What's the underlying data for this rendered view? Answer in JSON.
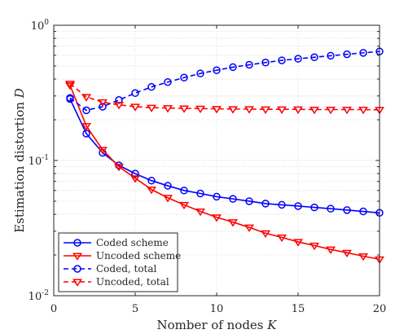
{
  "chart_data": {
    "type": "line",
    "xlabel": "Nomber of nodes ",
    "xlabel_var": "K",
    "ylabel": "Estimation distortion ",
    "ylabel_var": "D",
    "xlim": [
      0,
      20
    ],
    "ylim": [
      0.01,
      1
    ],
    "yscale": "log",
    "x_ticks": [
      0,
      5,
      10,
      15,
      20
    ],
    "y_ticks": [
      {
        "value": 1,
        "base": "10",
        "exp": "0"
      },
      {
        "value": 0.1,
        "base": "10",
        "exp": "-1"
      },
      {
        "value": 0.01,
        "base": "10",
        "exp": "-2"
      }
    ],
    "grid": true,
    "legend_position": "bottom-left",
    "series": [
      {
        "name": "Coded scheme",
        "color": "#0000ff",
        "line": "solid",
        "marker": "circle",
        "x": [
          1,
          2,
          3,
          4,
          5,
          6,
          7,
          8,
          9,
          10,
          11,
          12,
          13,
          14,
          15,
          16,
          17,
          18,
          19,
          20
        ],
        "y": [
          0.285,
          0.158,
          0.114,
          0.092,
          0.08,
          0.071,
          0.065,
          0.06,
          0.057,
          0.054,
          0.052,
          0.05,
          0.048,
          0.047,
          0.046,
          0.045,
          0.044,
          0.043,
          0.042,
          0.041
        ]
      },
      {
        "name": "Uncoded scheme",
        "color": "#ff0000",
        "line": "solid",
        "marker": "triangle-down",
        "x": [
          1,
          2,
          3,
          4,
          5,
          6,
          7,
          8,
          9,
          10,
          11,
          12,
          13,
          14,
          15,
          16,
          17,
          18,
          19,
          20
        ],
        "y": [
          0.36,
          0.18,
          0.12,
          0.09,
          0.074,
          0.061,
          0.053,
          0.047,
          0.042,
          0.038,
          0.035,
          0.032,
          0.029,
          0.027,
          0.025,
          0.0235,
          0.022,
          0.0208,
          0.0196,
          0.0186
        ]
      },
      {
        "name": "Coded, total",
        "color": "#0000ff",
        "line": "dashed",
        "marker": "circle",
        "x": [
          1,
          2,
          3,
          4,
          5,
          6,
          7,
          8,
          9,
          10,
          11,
          12,
          13,
          14,
          15,
          16,
          17,
          18,
          19,
          20
        ],
        "y": [
          0.29,
          0.235,
          0.25,
          0.28,
          0.315,
          0.35,
          0.38,
          0.41,
          0.44,
          0.465,
          0.49,
          0.51,
          0.53,
          0.55,
          0.565,
          0.58,
          0.595,
          0.61,
          0.625,
          0.64
        ]
      },
      {
        "name": "Uncoded, total",
        "color": "#ff0000",
        "line": "dashed",
        "marker": "triangle-down",
        "x": [
          1,
          2,
          3,
          4,
          5,
          6,
          7,
          8,
          9,
          10,
          11,
          12,
          13,
          14,
          15,
          16,
          17,
          18,
          19,
          20
        ],
        "y": [
          0.37,
          0.295,
          0.27,
          0.258,
          0.25,
          0.246,
          0.244,
          0.243,
          0.242,
          0.241,
          0.24,
          0.24,
          0.239,
          0.239,
          0.239,
          0.238,
          0.238,
          0.238,
          0.238,
          0.237
        ]
      }
    ]
  }
}
